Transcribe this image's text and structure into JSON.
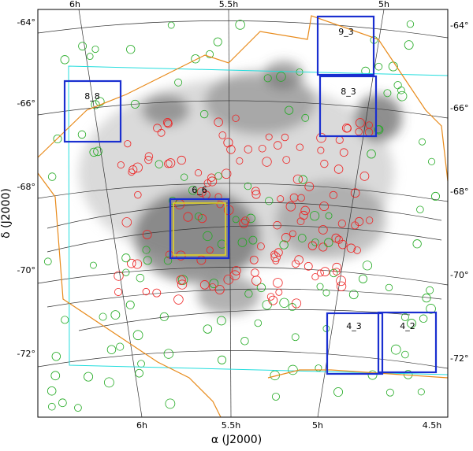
{
  "axes": {
    "x_label": "α (J2000)",
    "y_label": "δ (J2000)",
    "top_ticks": [
      "6h",
      "5.5h",
      "5h"
    ],
    "bottom_ticks": [
      "6h",
      "5.5h",
      "5h",
      "4.5h"
    ],
    "left_ticks": [
      "-64°",
      "-66°",
      "-68°",
      "-70°",
      "-72°"
    ],
    "right_ticks": [
      "-64°",
      "-66°",
      "-68°",
      "-70°",
      "-72°"
    ]
  },
  "tiles": [
    "9_3",
    "8_3",
    "8_8",
    "6_6",
    "4_3",
    "4_2"
  ]
}
